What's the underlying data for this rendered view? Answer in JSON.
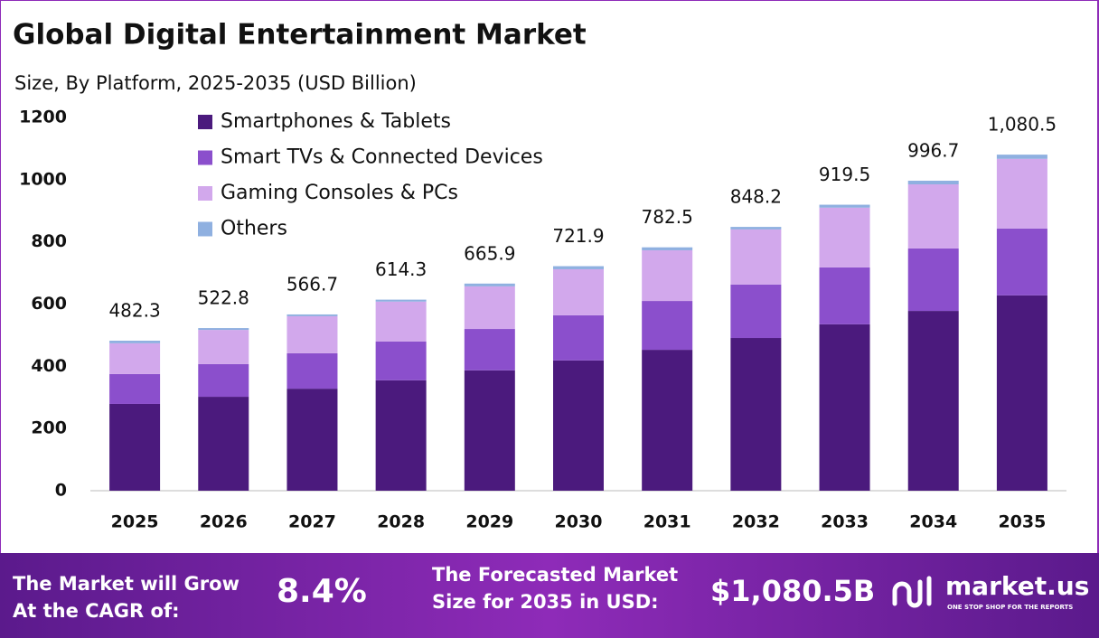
{
  "chart_data": {
    "type": "stacked_bar",
    "title": "Global Digital Entertainment Market",
    "subtitle": "Size, By Platform, 2025-2035 (USD Billion)",
    "categories": [
      "2025",
      "2026",
      "2027",
      "2028",
      "2029",
      "2030",
      "2031",
      "2032",
      "2033",
      "2034",
      "2035"
    ],
    "series": [
      {
        "name": "Smartphones & Tablets",
        "color": "#4b1a7d",
        "values": [
          279,
          302,
          328,
          355,
          387,
          419,
          453,
          491,
          535,
          578,
          628
        ]
      },
      {
        "name": "Smart TVs & Connected Devices",
        "color": "#8b4fcc",
        "values": [
          96,
          105,
          114,
          125,
          133,
          145,
          157,
          172,
          183,
          201,
          215
        ]
      },
      {
        "name": "Gaming Consoles & PCs",
        "color": "#d2a8ec",
        "values": [
          99,
          110,
          119,
          128,
          137,
          148,
          163,
          177,
          192,
          206,
          224
        ]
      },
      {
        "name": "Others",
        "color": "#8fb0e0",
        "values": [
          8.3,
          5.8,
          5.7,
          6.3,
          8.9,
          9.9,
          9.5,
          8.2,
          9.5,
          11.7,
          13.5
        ]
      }
    ],
    "totals": [
      482.3,
      522.8,
      566.7,
      614.3,
      665.9,
      721.9,
      782.5,
      848.2,
      919.5,
      996.7,
      1080.5
    ],
    "value_labels": [
      "482.3",
      "522.8",
      "566.7",
      "614.3",
      "665.9",
      "721.9",
      "782.5",
      "848.2",
      "919.5",
      "996.7",
      "1,080.5"
    ],
    "ylim": [
      0,
      1200
    ],
    "yticks": [
      0,
      200,
      400,
      600,
      800,
      1000,
      1200
    ],
    "legend": "top-left"
  },
  "footer": {
    "cagr_text": "The Market will Grow At the CAGR of:",
    "cagr": "8.4%",
    "forecast_text": "The Forecasted Market Size for 2035 in USD:",
    "forecast": "$1,080.5B",
    "brand": "market.us",
    "tagline": "ONE STOP SHOP FOR THE REPORTS"
  }
}
